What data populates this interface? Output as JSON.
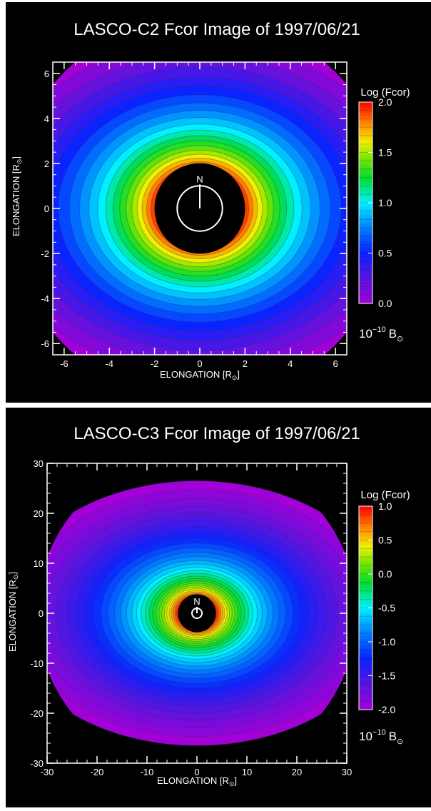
{
  "chart_data": [
    {
      "type": "heatmap",
      "title": "LASCO-C2 Fcor Image of 1997/06/21",
      "xlabel": "ELONGATION [R",
      "ylabel": "ELONGATION [R",
      "label_sub": "⊙",
      "label_close": "]",
      "xlim": [
        -6.5,
        6.5
      ],
      "ylim": [
        -6.5,
        6.5
      ],
      "xticks": [
        -6,
        -4,
        -2,
        0,
        2,
        4,
        6
      ],
      "yticks": [
        6,
        4,
        2,
        0,
        -2,
        -4,
        -6
      ],
      "minor_tick_step": 0.5,
      "colorbar": {
        "label": "Log (Fcor)",
        "range": [
          0.0,
          2.0
        ],
        "ticks": [
          "2.0",
          "1.5",
          "1.0",
          "0.5",
          "0.0"
        ],
        "units_base": "10",
        "units_exp": "−10",
        "units_sym": "B",
        "units_sub": "⊙"
      },
      "occulter_radius": 2.0,
      "field_of_view_radius": 8.5,
      "contour_levels": 20,
      "flattening": 1.3,
      "north_marker": "N"
    },
    {
      "type": "heatmap",
      "title": "LASCO-C3 Fcor Image of 1997/06/21",
      "xlabel": "ELONGATION [R",
      "ylabel": "ELONGATION [R",
      "label_sub": "⊙",
      "label_close": "]",
      "xlim": [
        -30,
        30
      ],
      "ylim": [
        -30,
        30
      ],
      "xticks": [
        -30,
        -20,
        -10,
        0,
        10,
        20,
        30
      ],
      "yticks": [
        30,
        20,
        10,
        0,
        -10,
        -20,
        -30
      ],
      "minor_tick_step": 2,
      "colorbar": {
        "label": "Log (Fcor)",
        "range": [
          -2.0,
          1.0
        ],
        "ticks": [
          "1.0",
          "0.5",
          "0.0",
          "-0.5",
          "-1.0",
          "-1.5",
          "-2.0"
        ],
        "units_base": "10",
        "units_exp": "−10",
        "units_sym": "B",
        "units_sub": "⊙"
      },
      "occulter_radius": 3.8,
      "field_of_view_radius": 32,
      "contour_levels": 30,
      "flattening": 1.45,
      "north_marker": "N"
    }
  ]
}
